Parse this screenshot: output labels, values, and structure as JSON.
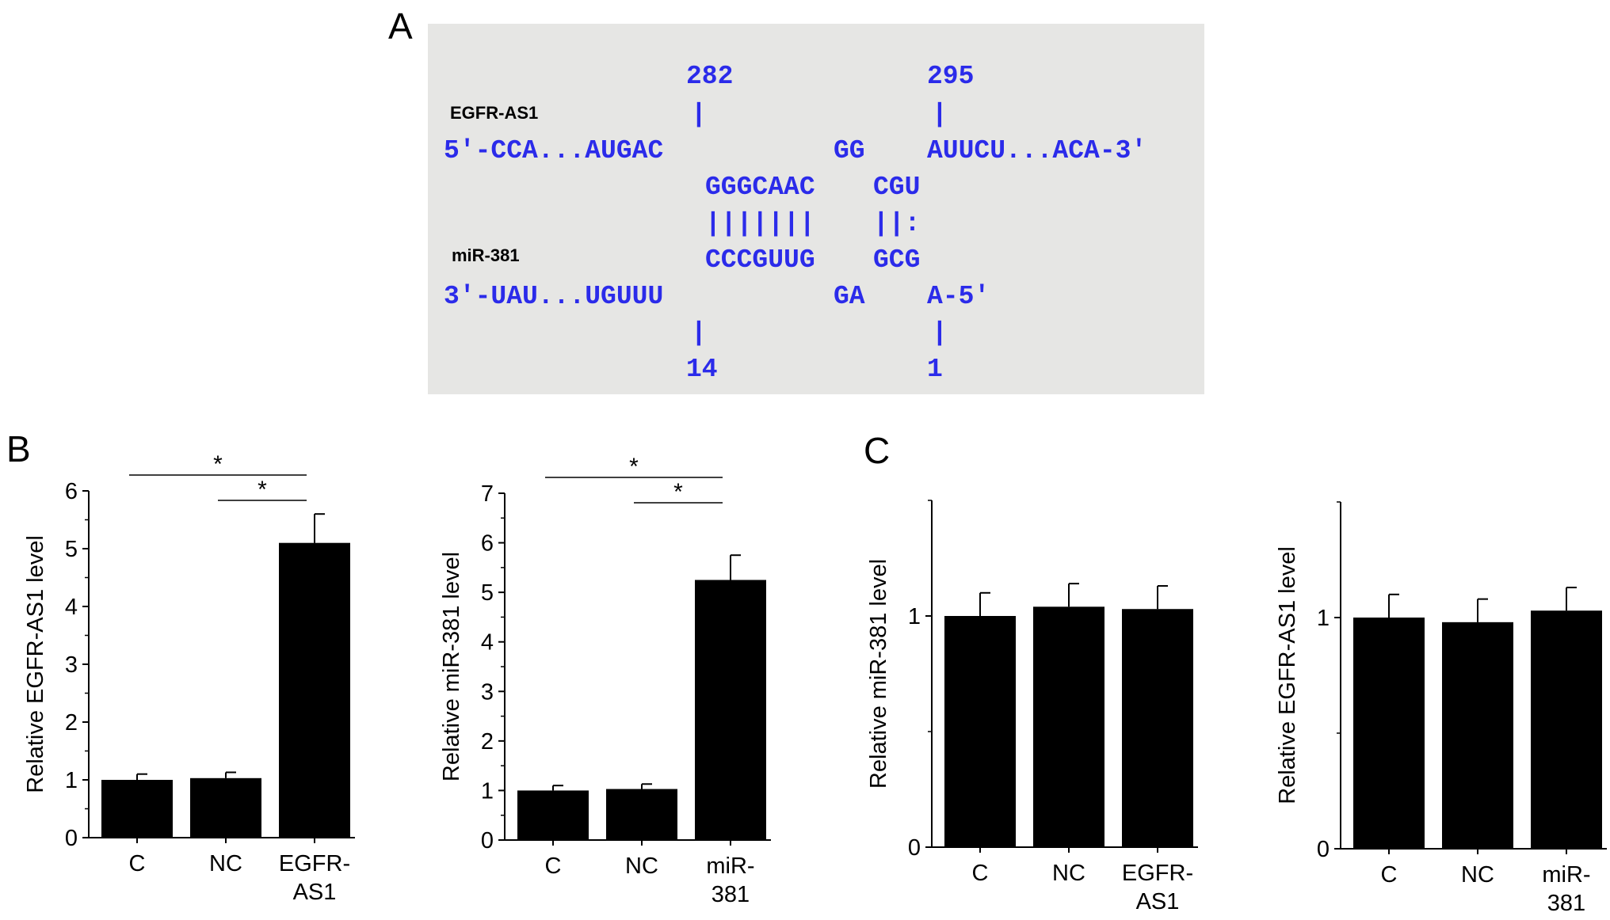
{
  "panels": {
    "a": "A",
    "b": "B",
    "c": "C"
  },
  "sequence": {
    "lnc_label": "EGFR-AS1",
    "mir_label": "miR-381",
    "pos_top_left": "282",
    "pos_top_right": "295",
    "pos_bottom_left": "14",
    "pos_bottom_right": "1",
    "tick": "|",
    "top_5p": "5'-CCA...AUGAC",
    "top_gg": "GG",
    "top_3p": "AUUCU...ACA-3'",
    "pair_top_1": "GGGCAAC",
    "pair_top_2": "CGU",
    "bonds_1": "|||||||",
    "bonds_2": "||:",
    "pair_bot_1": "CCCGUUG",
    "pair_bot_2": "GCG",
    "bot_3p": "3'-UAU...UGUUU",
    "bot_ga": "GA",
    "bot_5p": "A-5'"
  },
  "chart_data": [
    {
      "type": "bar",
      "categories": [
        "C",
        "NC",
        "EGFR-AS1"
      ],
      "values": [
        1.0,
        1.03,
        5.1
      ],
      "errors": [
        0.1,
        0.1,
        0.5
      ],
      "ylabel": "Relative EGFR-AS1 level",
      "ylim": [
        0,
        6
      ],
      "yticks": [
        "0",
        "1",
        "2",
        "3",
        "4",
        "5",
        "6"
      ],
      "significance": [
        {
          "from": 0,
          "to": 2,
          "label": "*"
        },
        {
          "from": 1,
          "to": 2,
          "label": "*"
        }
      ]
    },
    {
      "type": "bar",
      "categories": [
        "C",
        "NC",
        "miR-381"
      ],
      "values": [
        1.0,
        1.03,
        5.25
      ],
      "errors": [
        0.1,
        0.1,
        0.5
      ],
      "ylabel": "Relative miR-381 level",
      "ylim": [
        0,
        7
      ],
      "yticks": [
        "0",
        "1",
        "2",
        "3",
        "4",
        "5",
        "6",
        "7"
      ],
      "significance": [
        {
          "from": 0,
          "to": 2,
          "label": "*"
        },
        {
          "from": 1,
          "to": 2,
          "label": "*"
        }
      ]
    },
    {
      "type": "bar",
      "categories": [
        "C",
        "NC",
        "EGFR-AS1"
      ],
      "values": [
        1.0,
        1.04,
        1.03
      ],
      "errors": [
        0.1,
        0.1,
        0.1
      ],
      "ylabel": "Relative miR-381 level",
      "ylim": [
        0,
        1.5
      ],
      "yticks": [
        "0",
        "1"
      ],
      "significance": []
    },
    {
      "type": "bar",
      "categories": [
        "C",
        "NC",
        "miR-381"
      ],
      "values": [
        1.0,
        0.98,
        1.03
      ],
      "errors": [
        0.1,
        0.1,
        0.1
      ],
      "ylabel": "Relative EGFR-AS1 level",
      "ylim": [
        0,
        1.5
      ],
      "yticks": [
        "0",
        "1"
      ],
      "significance": []
    }
  ]
}
